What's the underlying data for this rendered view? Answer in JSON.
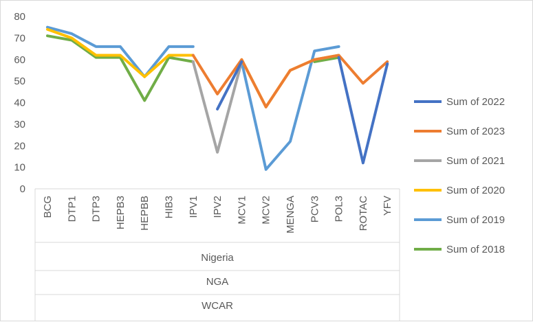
{
  "chart_data": {
    "type": "line",
    "title": "",
    "xlabel": "",
    "ylabel": "",
    "ylim": [
      0,
      80
    ],
    "yticks": [
      0,
      10,
      20,
      30,
      40,
      50,
      60,
      70,
      80
    ],
    "grid": false,
    "legend_position": "right",
    "categories": [
      "BCG",
      "DTP1",
      "DTP3",
      "HEPB3",
      "HEPBB",
      "HIB3",
      "IPV1",
      "IPV2",
      "MCV1",
      "MCV2",
      "MENGA",
      "PCV3",
      "POL3",
      "ROTAC",
      "YFV"
    ],
    "group_labels": [
      "Nigeria",
      "NGA",
      "WCAR"
    ],
    "series": [
      {
        "name": "Sum of 2022",
        "color": "#4472c4",
        "values": [
          null,
          null,
          null,
          null,
          null,
          null,
          null,
          37,
          59,
          null,
          null,
          null,
          61,
          12,
          58
        ]
      },
      {
        "name": "Sum of 2023",
        "color": "#ed7d31",
        "values": [
          null,
          null,
          null,
          null,
          null,
          null,
          62,
          44,
          60,
          38,
          55,
          60,
          62,
          49,
          59
        ]
      },
      {
        "name": "Sum of 2021",
        "color": "#a5a5a5",
        "values": [
          null,
          null,
          null,
          null,
          null,
          null,
          59,
          17,
          59,
          null,
          null,
          null,
          null,
          null,
          null
        ]
      },
      {
        "name": "Sum of 2020",
        "color": "#ffc000",
        "values": [
          74,
          70,
          62,
          62,
          52,
          62,
          62,
          null,
          60,
          38,
          55,
          60,
          62,
          null,
          null
        ]
      },
      {
        "name": "Sum of 2019",
        "color": "#5b9bd5",
        "values": [
          75,
          72,
          66,
          66,
          52,
          66,
          66,
          null,
          59,
          9,
          22,
          64,
          66,
          null,
          null
        ]
      },
      {
        "name": "Sum of 2018",
        "color": "#70ad47",
        "values": [
          71,
          69,
          61,
          61,
          41,
          61,
          59,
          null,
          null,
          null,
          null,
          59,
          61,
          null,
          null
        ]
      }
    ]
  }
}
